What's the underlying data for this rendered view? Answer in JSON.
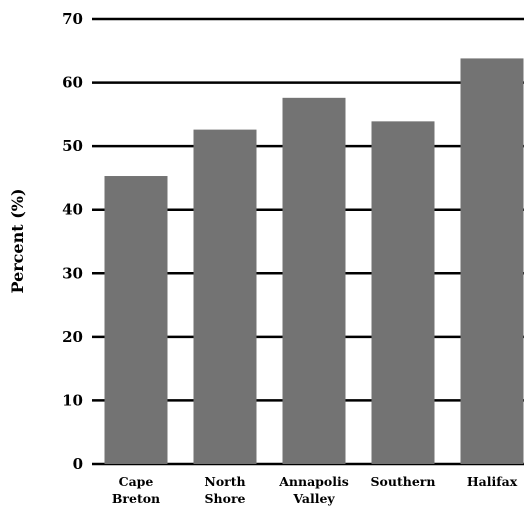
{
  "chart_data": {
    "type": "bar",
    "title": "",
    "xlabel": "",
    "ylabel": "Percent (%)",
    "ylim": [
      0,
      70
    ],
    "yticks": [
      "0",
      "10",
      "20",
      "30",
      "40",
      "50",
      "60",
      "70"
    ],
    "grid": true,
    "categories": [
      [
        "Cape",
        "Breton"
      ],
      [
        "North",
        "Shore"
      ],
      [
        "Annapolis",
        "Valley"
      ],
      [
        "Southern"
      ],
      [
        "Halifax"
      ]
    ],
    "values": [
      45.3,
      52.6,
      57.6,
      53.9,
      63.8
    ],
    "colors": {
      "bar": "#737373",
      "grid": "#000000",
      "text": "#000000"
    }
  }
}
